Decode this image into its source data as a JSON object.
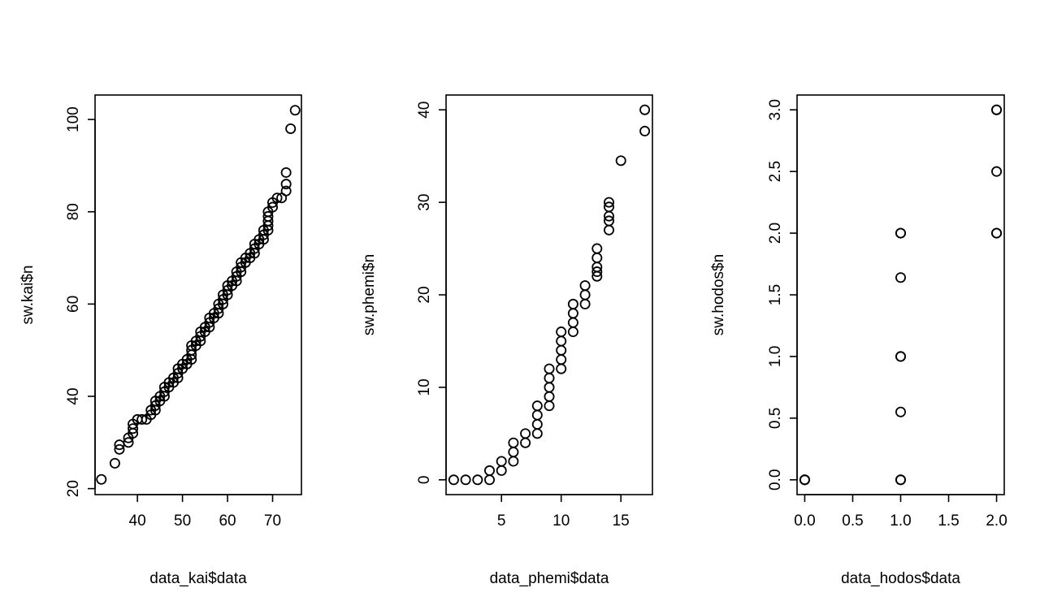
{
  "chart_data": [
    {
      "type": "scatter",
      "xlabel": "data_kai$data",
      "ylabel": "sw.kai$n",
      "xlim": [
        30.6,
        76.4
      ],
      "ylim": [
        18.7,
        105.3
      ],
      "xticks": [
        40,
        50,
        60,
        70
      ],
      "yticks": [
        20,
        40,
        60,
        80,
        100
      ],
      "grid": false,
      "points": [
        [
          32,
          22
        ],
        [
          35,
          25.5
        ],
        [
          36,
          28.5
        ],
        [
          36,
          29.5
        ],
        [
          38,
          30
        ],
        [
          38,
          31
        ],
        [
          39,
          32
        ],
        [
          39,
          33
        ],
        [
          39,
          34
        ],
        [
          40,
          35
        ],
        [
          41,
          35
        ],
        [
          42,
          35
        ],
        [
          43,
          36
        ],
        [
          43,
          37
        ],
        [
          44,
          37
        ],
        [
          44,
          38
        ],
        [
          44,
          39
        ],
        [
          45,
          39
        ],
        [
          45,
          40
        ],
        [
          46,
          40
        ],
        [
          46,
          41
        ],
        [
          46,
          42
        ],
        [
          47,
          42
        ],
        [
          47,
          43
        ],
        [
          48,
          43
        ],
        [
          48,
          44
        ],
        [
          49,
          44
        ],
        [
          49,
          45
        ],
        [
          49,
          46
        ],
        [
          50,
          46
        ],
        [
          50,
          47
        ],
        [
          51,
          47
        ],
        [
          51,
          48
        ],
        [
          52,
          48
        ],
        [
          52,
          49
        ],
        [
          52,
          50
        ],
        [
          52,
          51
        ],
        [
          53,
          51
        ],
        [
          53,
          52
        ],
        [
          54,
          52
        ],
        [
          54,
          53
        ],
        [
          54,
          54
        ],
        [
          55,
          54
        ],
        [
          55,
          55
        ],
        [
          56,
          55
        ],
        [
          56,
          56
        ],
        [
          56,
          57
        ],
        [
          57,
          57
        ],
        [
          57,
          58
        ],
        [
          58,
          58
        ],
        [
          58,
          59
        ],
        [
          58,
          60
        ],
        [
          59,
          60
        ],
        [
          59,
          61
        ],
        [
          59,
          62
        ],
        [
          60,
          62
        ],
        [
          60,
          63
        ],
        [
          60,
          64
        ],
        [
          61,
          64
        ],
        [
          61,
          65
        ],
        [
          62,
          65
        ],
        [
          62,
          66
        ],
        [
          62,
          67
        ],
        [
          63,
          67
        ],
        [
          63,
          68
        ],
        [
          63,
          69
        ],
        [
          64,
          69
        ],
        [
          64,
          70
        ],
        [
          65,
          70
        ],
        [
          65,
          71
        ],
        [
          66,
          71
        ],
        [
          66,
          72
        ],
        [
          66,
          73
        ],
        [
          67,
          73
        ],
        [
          67,
          74
        ],
        [
          68,
          74
        ],
        [
          68,
          75
        ],
        [
          68,
          76
        ],
        [
          69,
          76
        ],
        [
          69,
          77
        ],
        [
          69,
          78
        ],
        [
          69,
          79
        ],
        [
          69,
          80
        ],
        [
          70,
          81
        ],
        [
          70,
          82
        ],
        [
          71,
          83
        ],
        [
          72,
          83
        ],
        [
          73,
          84.5
        ],
        [
          73,
          86
        ],
        [
          73,
          88.5
        ],
        [
          74,
          98
        ],
        [
          75,
          102
        ]
      ]
    },
    {
      "type": "scatter",
      "xlabel": "data_phemi$data",
      "ylabel": "sw.phemi$n",
      "xlim": [
        0.36,
        17.64
      ],
      "ylim": [
        -1.6,
        41.6
      ],
      "xticks": [
        5,
        10,
        15
      ],
      "yticks": [
        0,
        10,
        20,
        30,
        40
      ],
      "grid": false,
      "points": [
        [
          1,
          0
        ],
        [
          2,
          0
        ],
        [
          3,
          0
        ],
        [
          4,
          0
        ],
        [
          4,
          1
        ],
        [
          5,
          1
        ],
        [
          5,
          2
        ],
        [
          6,
          2
        ],
        [
          6,
          3
        ],
        [
          6,
          4
        ],
        [
          7,
          4
        ],
        [
          7,
          5
        ],
        [
          8,
          5
        ],
        [
          8,
          6
        ],
        [
          8,
          7
        ],
        [
          8,
          8
        ],
        [
          9,
          8
        ],
        [
          9,
          9
        ],
        [
          9,
          10
        ],
        [
          9,
          11
        ],
        [
          9,
          12
        ],
        [
          10,
          12
        ],
        [
          10,
          13
        ],
        [
          10,
          14
        ],
        [
          10,
          15
        ],
        [
          10,
          16
        ],
        [
          11,
          16
        ],
        [
          11,
          17
        ],
        [
          11,
          18
        ],
        [
          11,
          19
        ],
        [
          12,
          19
        ],
        [
          12,
          20
        ],
        [
          12,
          21
        ],
        [
          13,
          22
        ],
        [
          13,
          22.5
        ],
        [
          13,
          23
        ],
        [
          13,
          24
        ],
        [
          13,
          25
        ],
        [
          14,
          27
        ],
        [
          14,
          28
        ],
        [
          14,
          28.5
        ],
        [
          14,
          29.5
        ],
        [
          14,
          30
        ],
        [
          15,
          34.5
        ],
        [
          17,
          37.7
        ],
        [
          17,
          40
        ]
      ]
    },
    {
      "type": "scatter",
      "xlabel": "data_hodos$data",
      "ylabel": "sw.hodos$n",
      "xlim": [
        -0.08,
        2.08
      ],
      "ylim": [
        -0.12,
        3.12
      ],
      "xticks": [
        0.0,
        0.5,
        1.0,
        1.5,
        2.0
      ],
      "xtick_labels": [
        "0.0",
        "0.5",
        "1.0",
        "1.5",
        "2.0"
      ],
      "yticks": [
        0.0,
        0.5,
        1.0,
        1.5,
        2.0,
        2.5,
        3.0
      ],
      "ytick_labels": [
        "0.0",
        "0.5",
        "1.0",
        "1.5",
        "2.0",
        "2.5",
        "3.0"
      ],
      "grid": false,
      "points": [
        [
          0,
          0
        ],
        [
          0,
          0
        ],
        [
          0,
          0
        ],
        [
          1,
          0
        ],
        [
          1,
          0
        ],
        [
          1,
          0.55
        ],
        [
          1,
          1
        ],
        [
          1,
          1
        ],
        [
          1,
          1.64
        ],
        [
          1,
          2
        ],
        [
          1,
          2
        ],
        [
          2,
          2
        ],
        [
          2,
          2
        ],
        [
          2,
          2.5
        ],
        [
          2,
          3
        ],
        [
          2,
          3
        ]
      ]
    }
  ]
}
